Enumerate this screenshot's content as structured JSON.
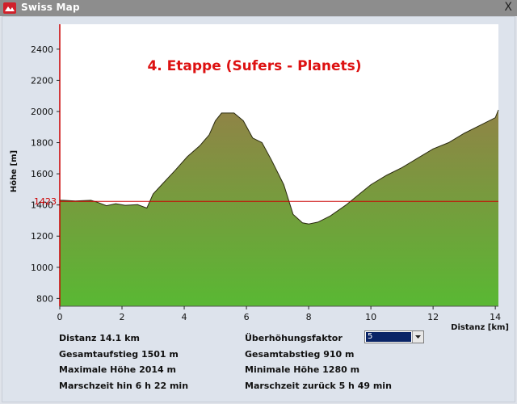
{
  "window": {
    "title": "Swiss Map",
    "close_label": "X",
    "app_icon": "swissmap-app-icon"
  },
  "chart_data": {
    "type": "area",
    "title": "4. Etappe (Sufers - Planets)",
    "xlabel": "Distanz [km]",
    "ylabel": "Höhe [m]",
    "xlim": [
      0,
      14.1
    ],
    "ylim": [
      750,
      2560
    ],
    "xticks": [
      0,
      2,
      4,
      6,
      8,
      10,
      12,
      14
    ],
    "yticks": [
      800,
      1000,
      1200,
      1400,
      1600,
      1800,
      2000,
      2200,
      2400
    ],
    "reference_line": {
      "value": 1423,
      "label": "1423",
      "color": "#cc0000"
    },
    "fill_top_color": "#8f8446",
    "fill_bottom_color": "#59b833",
    "x": [
      0,
      0.1,
      0.5,
      1.0,
      1.2,
      1.5,
      1.8,
      2.1,
      2.5,
      2.8,
      3.0,
      3.3,
      3.7,
      4.1,
      4.5,
      4.8,
      5.0,
      5.2,
      5.6,
      5.9,
      6.2,
      6.5,
      6.8,
      7.2,
      7.5,
      7.8,
      8.0,
      8.3,
      8.7,
      9.2,
      9.6,
      10.0,
      10.5,
      11.0,
      11.5,
      12.0,
      12.5,
      13.0,
      13.5,
      14.0,
      14.1
    ],
    "y": [
      1430,
      1430,
      1425,
      1430,
      1418,
      1395,
      1408,
      1398,
      1402,
      1380,
      1470,
      1535,
      1620,
      1710,
      1780,
      1850,
      1940,
      1990,
      1990,
      1940,
      1830,
      1800,
      1690,
      1530,
      1340,
      1285,
      1278,
      1290,
      1330,
      1400,
      1465,
      1530,
      1590,
      1640,
      1700,
      1760,
      1800,
      1860,
      1910,
      1960,
      2010
    ]
  },
  "stats": {
    "distanz": "Distanz  14.1 km",
    "gesamtaufstieg": "Gesamtaufstieg   1501 m",
    "maximale_hoehe": "Maximale Höhe   2014 m",
    "marschzeit_hin": "Marschzeit hin   6 h 22 min",
    "ueberhoehung_label": "Überhöhungsfaktor",
    "gesamtabstieg": "Gesamtabstieg   910 m",
    "minimale_hoehe": "Minimale Höhe   1280 m",
    "marschzeit_zurueck": "Marschzeit zurück   5 h 49 min"
  },
  "ueberhoehung_select": {
    "value": "5"
  }
}
